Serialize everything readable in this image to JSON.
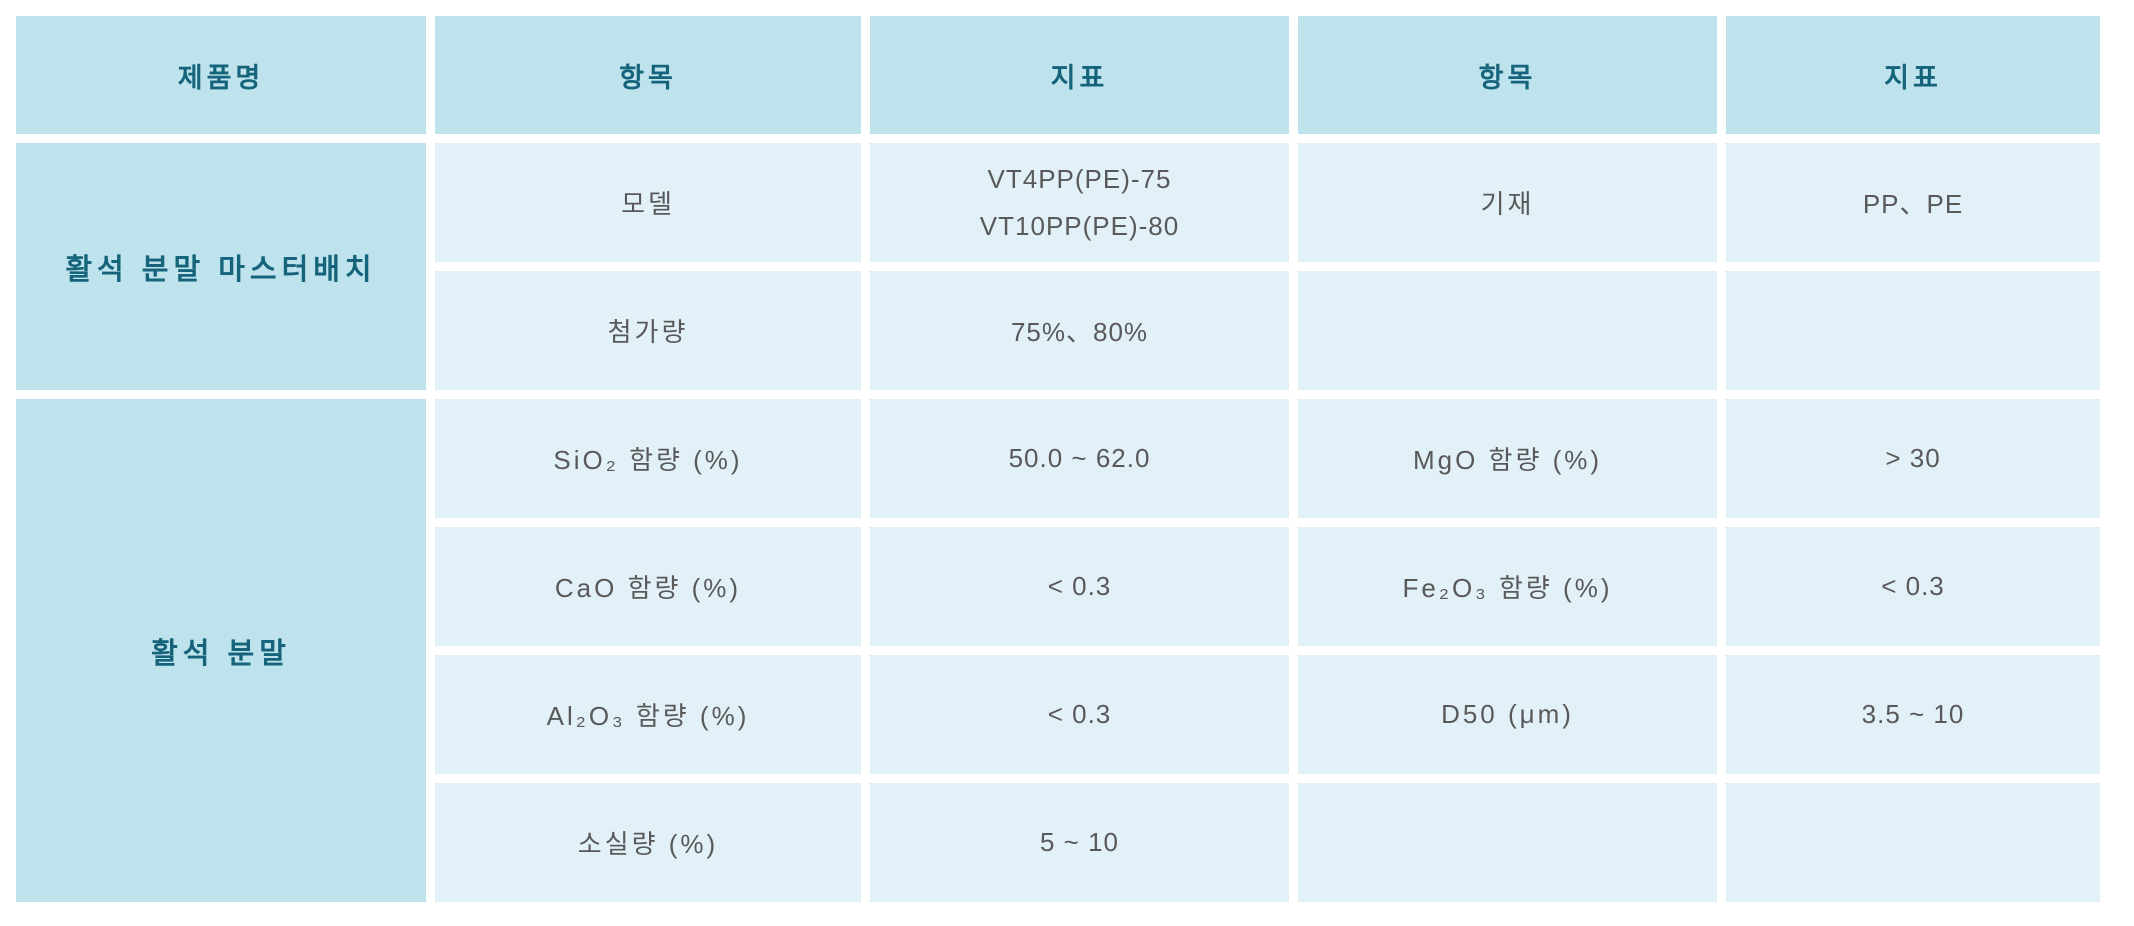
{
  "page": {
    "background": "#ffffff"
  },
  "table": {
    "header": {
      "product": "제품명",
      "item_1": "항목",
      "spec_1": "지표",
      "item_2": "항목",
      "spec_2": "지표"
    },
    "sections": [
      {
        "product": "활석 분말 마스터배치",
        "rows": [
          {
            "item1": "모델",
            "value1": "VT4PP(PE)-75\nVT10PP(PE)-80",
            "item2": "기재",
            "value2": "PP、PE"
          },
          {
            "item1": "첨가량",
            "value1": "75%、80%",
            "item2": "",
            "value2": ""
          }
        ]
      },
      {
        "product": "활석 분말",
        "rows": [
          {
            "item1": "SiO₂ 함량 (%)",
            "value1": "50.0 ~ 62.0",
            "item2": "MgO 함량 (%)",
            "value2": "> 30"
          },
          {
            "item1": "CaO 함량 (%)",
            "value1": "< 0.3",
            "item2": "Fe₂O₃ 함량 (%)",
            "value2": "< 0.3"
          },
          {
            "item1": "Al₂O₃ 함량 (%)",
            "value1": "< 0.3",
            "item2": "D50 (μm)",
            "value2": "3.5 ~ 10"
          },
          {
            "item1": "소실량 (%)",
            "value1": "5 ~ 10",
            "item2": "",
            "value2": ""
          }
        ]
      }
    ],
    "colors": {
      "header_bg": "#bee3ec",
      "cell_bg": "#e2f1f8",
      "header_text": "#15647b",
      "body_text": "#595959",
      "gridline": "#ffffff"
    }
  }
}
